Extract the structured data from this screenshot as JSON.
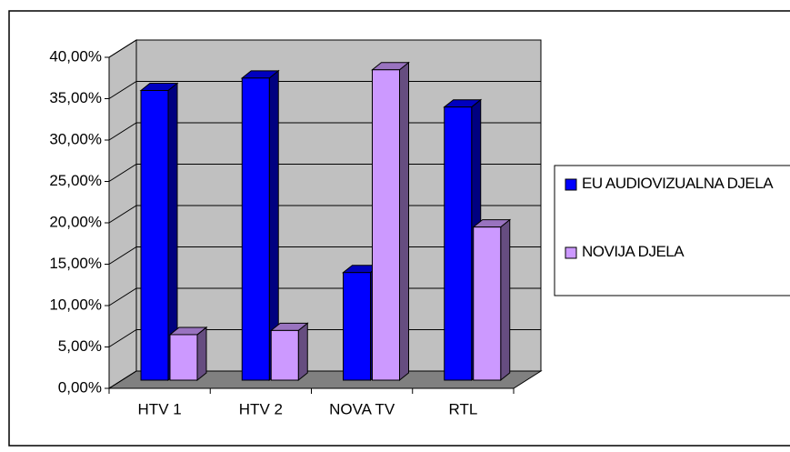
{
  "chart_data": {
    "type": "bar3d",
    "categories": [
      "HTV 1",
      "HTV 2",
      "NOVA TV",
      "RTL"
    ],
    "series": [
      {
        "name": "EU AUDIOVIZUALNA DJELA",
        "color": "#0000ff",
        "values": [
          35,
          36.5,
          13,
          33
        ]
      },
      {
        "name": "NOVIJA DJELA",
        "color": "#cc99ff",
        "values": [
          5.5,
          6,
          37.5,
          18.5
        ]
      }
    ],
    "ylim": [
      0,
      40
    ],
    "yticks": [
      {
        "value": 0,
        "label": "0,00%"
      },
      {
        "value": 5,
        "label": "5,00%"
      },
      {
        "value": 10,
        "label": "10,00%"
      },
      {
        "value": 15,
        "label": "15,00%"
      },
      {
        "value": 20,
        "label": "20,00%"
      },
      {
        "value": 25,
        "label": "25,00%"
      },
      {
        "value": 30,
        "label": "30,00%"
      },
      {
        "value": 35,
        "label": "35,00%"
      },
      {
        "value": 40,
        "label": "40,00%"
      }
    ],
    "grid": true
  }
}
